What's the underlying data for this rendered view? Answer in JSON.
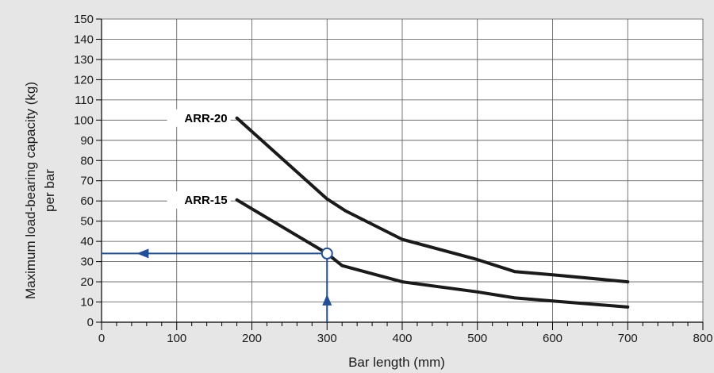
{
  "chart_data": {
    "type": "line",
    "xlabel": "Bar length (mm)",
    "ylabel_line1": "Maximum load-bearing capacity (kg)",
    "ylabel_line2": "per bar",
    "xlim": [
      0,
      800
    ],
    "ylim": [
      0,
      150
    ],
    "x_ticks": [
      0,
      100,
      200,
      300,
      400,
      500,
      600,
      700,
      800
    ],
    "y_ticks": [
      0,
      10,
      20,
      30,
      40,
      50,
      60,
      70,
      80,
      90,
      100,
      110,
      120,
      130,
      140,
      150
    ],
    "grid": true,
    "series": [
      {
        "name": "ARR-20",
        "points": [
          [
            180,
            101
          ],
          [
            300,
            61
          ],
          [
            325,
            55
          ],
          [
            400,
            41
          ],
          [
            500,
            31
          ],
          [
            550,
            25
          ],
          [
            600,
            23.5
          ],
          [
            700,
            20
          ]
        ]
      },
      {
        "name": "ARR-15",
        "points": [
          [
            180,
            60.5
          ],
          [
            300,
            34
          ],
          [
            320,
            28
          ],
          [
            400,
            20
          ],
          [
            500,
            15
          ],
          [
            550,
            12
          ],
          [
            600,
            10.5
          ],
          [
            700,
            7.5
          ]
        ]
      }
    ],
    "annotation": {
      "x": 300,
      "y": 34,
      "color": "#1f4e9a"
    },
    "colors": {
      "background": "#e6e6e6",
      "plot_area": "#ffffff",
      "series": "#1a1a1a",
      "grid": "#555555",
      "annotation": "#1f4e9a"
    }
  }
}
